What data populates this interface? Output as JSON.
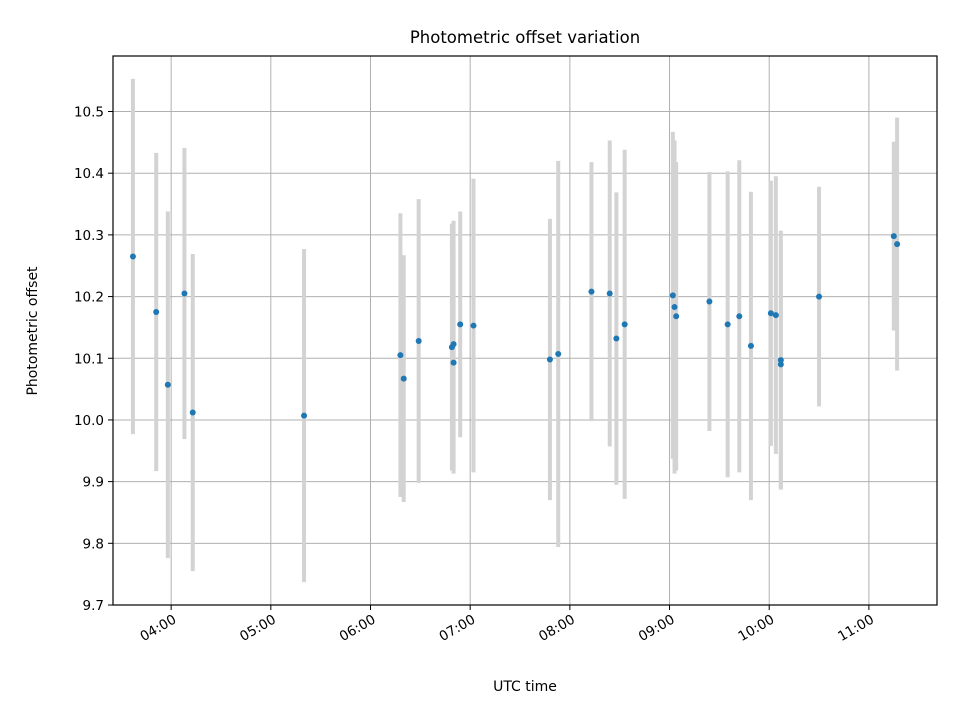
{
  "chart_data": {
    "type": "scatter",
    "title": "Photometric offset variation",
    "xlabel": "UTC time",
    "ylabel": "Photometric offset",
    "x_ticks": [
      "04:00",
      "05:00",
      "06:00",
      "07:00",
      "08:00",
      "09:00",
      "10:00",
      "11:00"
    ],
    "y_ticks": [
      "9.7",
      "9.8",
      "9.9",
      "10.0",
      "10.1",
      "10.2",
      "10.3",
      "10.4",
      "10.5"
    ],
    "xlim": [
      "03:25",
      "11:41"
    ],
    "ylim": [
      9.7,
      10.59
    ],
    "grid": true,
    "colors": {
      "points": "#1f77b4",
      "errorbars": "#d3d3d3",
      "grid": "#b0b0b0"
    },
    "points": [
      {
        "x": "03:37",
        "y": 10.265,
        "yerr": 0.288
      },
      {
        "x": "03:51",
        "y": 10.175,
        "yerr": 0.258
      },
      {
        "x": "03:58",
        "y": 10.057,
        "yerr": 0.281
      },
      {
        "x": "04:08",
        "y": 10.205,
        "yerr": 0.236
      },
      {
        "x": "04:13",
        "y": 10.012,
        "yerr": 0.257
      },
      {
        "x": "05:20",
        "y": 10.007,
        "yerr": 0.27
      },
      {
        "x": "06:18",
        "y": 10.105,
        "yerr": 0.23
      },
      {
        "x": "06:20",
        "y": 10.067,
        "yerr": 0.2
      },
      {
        "x": "06:29",
        "y": 10.128,
        "yerr": 0.23
      },
      {
        "x": "06:49",
        "y": 10.118,
        "yerr": 0.2
      },
      {
        "x": "06:50",
        "y": 10.123,
        "yerr": 0.2
      },
      {
        "x": "06:50",
        "y": 10.093,
        "yerr": 0.18
      },
      {
        "x": "06:54",
        "y": 10.155,
        "yerr": 0.183
      },
      {
        "x": "07:02",
        "y": 10.153,
        "yerr": 0.238
      },
      {
        "x": "07:48",
        "y": 10.098,
        "yerr": 0.228
      },
      {
        "x": "07:53",
        "y": 10.107,
        "yerr": 0.313
      },
      {
        "x": "08:13",
        "y": 10.208,
        "yerr": 0.21
      },
      {
        "x": "08:24",
        "y": 10.205,
        "yerr": 0.248
      },
      {
        "x": "08:28",
        "y": 10.132,
        "yerr": 0.237
      },
      {
        "x": "08:33",
        "y": 10.155,
        "yerr": 0.283
      },
      {
        "x": "09:02",
        "y": 10.202,
        "yerr": 0.265
      },
      {
        "x": "09:03",
        "y": 10.183,
        "yerr": 0.27
      },
      {
        "x": "09:04",
        "y": 10.168,
        "yerr": 0.25
      },
      {
        "x": "09:24",
        "y": 10.192,
        "yerr": 0.21
      },
      {
        "x": "09:35",
        "y": 10.155,
        "yerr": 0.248
      },
      {
        "x": "09:42",
        "y": 10.168,
        "yerr": 0.253
      },
      {
        "x": "09:49",
        "y": 10.12,
        "yerr": 0.25
      },
      {
        "x": "10:01",
        "y": 10.173,
        "yerr": 0.215
      },
      {
        "x": "10:04",
        "y": 10.17,
        "yerr": 0.225
      },
      {
        "x": "10:07",
        "y": 10.097,
        "yerr": 0.21
      },
      {
        "x": "10:07",
        "y": 10.09,
        "yerr": 0.2
      },
      {
        "x": "10:30",
        "y": 10.2,
        "yerr": 0.178
      },
      {
        "x": "11:15",
        "y": 10.298,
        "yerr": 0.153
      },
      {
        "x": "11:17",
        "y": 10.285,
        "yerr": 0.205
      }
    ]
  }
}
